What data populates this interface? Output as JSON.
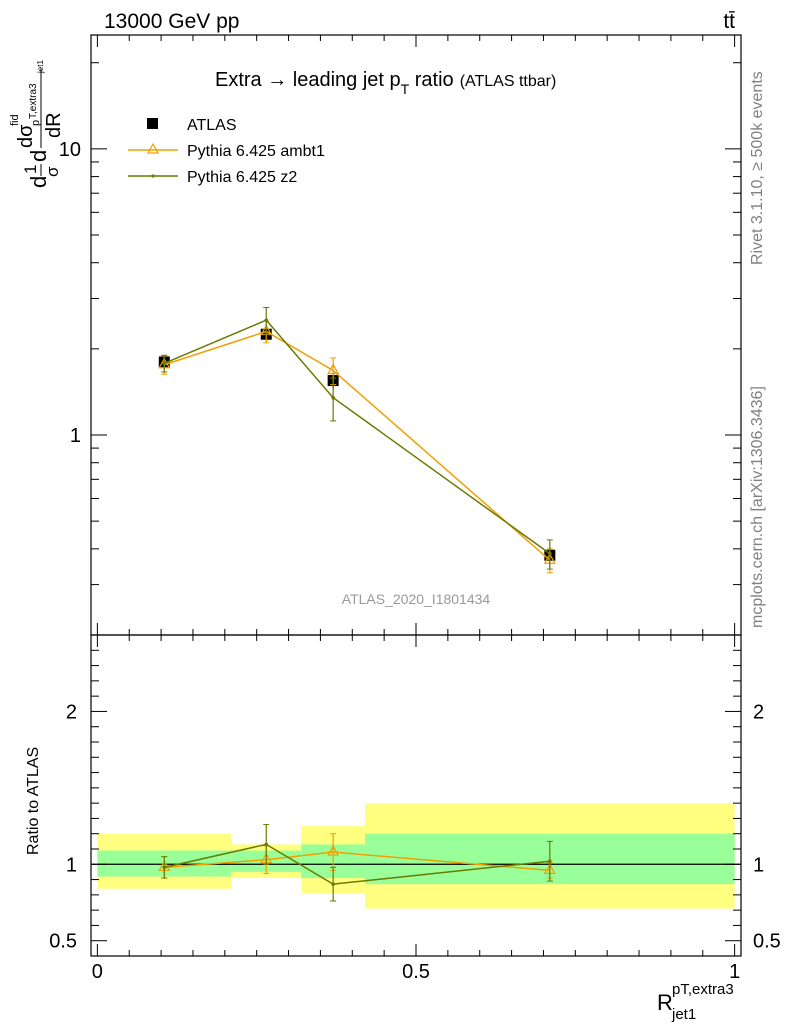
{
  "header": {
    "left": "13000 GeV pp",
    "right": "tt̄"
  },
  "side_labels": {
    "top": "Rivet 3.1.10, ≥ 500k events",
    "bottom": "mcplots.cern.ch [arXiv:1306.3436]"
  },
  "chart_data": {
    "type": "line",
    "title_main": "Extra → leading jet p",
    "title_sub": "T",
    "title_end": " ratio",
    "title_small": "(ATLAS ttbar)",
    "analysis_label": "ATLAS_2020_I1801434",
    "ylabel": "d(1/σ)dσ^fid/dR",
    "ylabel_parts": {
      "d1": "d",
      "one": "1",
      "sigma": "σ",
      "d2": "d",
      "dsig": "dσ",
      "fid": "fid",
      "sub": "p",
      "subT": "T,extra3",
      "subjet": "jet1",
      "dR": "dR"
    },
    "xlabel": {
      "main": "R",
      "sup": "pT,extra3",
      "sub": "jet1"
    },
    "xlim": [
      -0.01,
      1.01
    ],
    "ylim": [
      0.2,
      25
    ],
    "yscale": "log",
    "x_ticks": [
      "0",
      "0.5",
      "1"
    ],
    "y_ticks_main": [
      "1",
      "10"
    ],
    "legend": [
      {
        "name": "ATLAS",
        "color": "#000000",
        "marker": "square"
      },
      {
        "name": "Pythia 6.425 ambt1",
        "color": "#f0a000",
        "marker": "triangle"
      },
      {
        "name": "Pythia 6.425 z2",
        "color": "#6b7a00",
        "marker": "dot"
      }
    ],
    "bins": [
      {
        "xlo": 0.0,
        "xhi": 0.21
      },
      {
        "xlo": 0.21,
        "xhi": 0.32
      },
      {
        "xlo": 0.32,
        "xhi": 0.42
      },
      {
        "xlo": 0.42,
        "xhi": 1.0
      }
    ],
    "data": {
      "x": [
        0.105,
        0.265,
        0.37,
        0.71
      ],
      "y": [
        1.8,
        2.25,
        1.55,
        0.38
      ],
      "err": [
        0.08,
        0.12,
        0.1,
        0.025
      ]
    },
    "series": [
      {
        "name": "Pythia 6.425 ambt1",
        "color": "#f0a000",
        "x": [
          0.105,
          0.265,
          0.37,
          0.71
        ],
        "y": [
          1.76,
          2.3,
          1.68,
          0.365
        ],
        "err": [
          0.13,
          0.2,
          0.18,
          0.035
        ]
      },
      {
        "name": "Pythia 6.425 z2",
        "color": "#6b7a00",
        "x": [
          0.105,
          0.265,
          0.37,
          0.71
        ],
        "y": [
          1.78,
          2.52,
          1.35,
          0.385
        ],
        "err": [
          0.12,
          0.27,
          0.23,
          0.045
        ]
      }
    ],
    "ratio": {
      "ylabel": "Ratio to ATLAS",
      "ylim": [
        0.4,
        2.5
      ],
      "y_ticks": [
        "0.5",
        "1",
        "2"
      ],
      "band_inner": [
        [
          0.92,
          1.09
        ],
        [
          0.95,
          1.09
        ],
        [
          0.91,
          1.13
        ],
        [
          0.87,
          1.2
        ]
      ],
      "band_outer": [
        [
          0.84,
          1.2
        ],
        [
          0.91,
          1.13
        ],
        [
          0.81,
          1.25
        ],
        [
          0.71,
          1.4
        ]
      ],
      "series": [
        {
          "name": "Pythia 6.425 ambt1",
          "color": "#f0a000",
          "y": [
            0.98,
            1.03,
            1.08,
            0.96
          ],
          "err": [
            0.07,
            0.09,
            0.12,
            0.05
          ]
        },
        {
          "name": "Pythia 6.425 z2",
          "color": "#6b7a00",
          "y": [
            0.98,
            1.13,
            0.87,
            1.02
          ],
          "err": [
            0.07,
            0.13,
            0.11,
            0.13
          ]
        }
      ]
    }
  }
}
